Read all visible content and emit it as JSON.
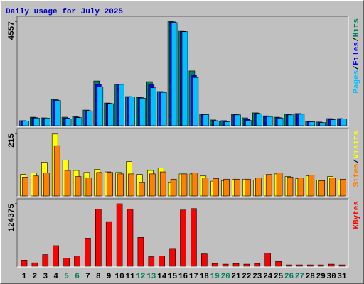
{
  "chart_data": {
    "type": "bar",
    "title": "Daily usage for July 2025",
    "categories": [
      "1",
      "2",
      "3",
      "4",
      "5",
      "6",
      "7",
      "8",
      "9",
      "10",
      "11",
      "12",
      "13",
      "14",
      "15",
      "16",
      "17",
      "18",
      "19",
      "20",
      "21",
      "22",
      "23",
      "24",
      "25",
      "26",
      "27",
      "28",
      "29",
      "30",
      "31"
    ],
    "category_colors": [
      "#000000",
      "#000000",
      "#000000",
      "#000000",
      "#00805c",
      "#00805c",
      "#000000",
      "#000000",
      "#000000",
      "#000000",
      "#000000",
      "#00805c",
      "#00805c",
      "#000000",
      "#000000",
      "#000000",
      "#000000",
      "#000000",
      "#00805c",
      "#00805c",
      "#000000",
      "#000000",
      "#000000",
      "#000000",
      "#000000",
      "#00805c",
      "#00805c",
      "#000000",
      "#000000",
      "#000000",
      "#000000"
    ],
    "legend_separator": "/",
    "panels": [
      {
        "ylim": [
          0,
          4557
        ],
        "yticks": [
          4557
        ],
        "series": [
          {
            "name": "Hits",
            "color": "#00805c",
            "values": [
              220,
              370,
              340,
              1150,
              370,
              400,
              680,
              1950,
              990,
              1800,
              1270,
              1240,
              1920,
              1490,
              4557,
              4150,
              2390,
              500,
              250,
              220,
              500,
              340,
              560,
              430,
              370,
              500,
              530,
              190,
              160,
              310,
              310
            ]
          },
          {
            "name": "Files",
            "color": "#0000ff",
            "values": [
              210,
              350,
              335,
              1120,
              330,
              370,
              660,
              1800,
              975,
              1800,
              1260,
              1220,
              1780,
              1470,
              4530,
              4120,
              2200,
              490,
              220,
              190,
              480,
              280,
              540,
              410,
              350,
              480,
              510,
              180,
              140,
              280,
              300
            ]
          },
          {
            "name": "Pages",
            "color": "#00c0ff",
            "values": [
              200,
              330,
              330,
              1100,
              300,
              350,
              640,
              1700,
              960,
              1800,
              1250,
              1200,
              1650,
              1450,
              4500,
              4100,
              2100,
              480,
              200,
              170,
              470,
              230,
              520,
              400,
              330,
              470,
              500,
              170,
              130,
              260,
              300
            ]
          }
        ]
      },
      {
        "ylim": [
          0,
          215
        ],
        "yticks": [
          215
        ],
        "series": [
          {
            "name": "Visits",
            "color": "#ffff00",
            "values": [
              74,
              79,
              116,
              213,
              123,
              88,
              81,
              92,
              83,
              81,
              118,
              74,
              88,
              97,
              46,
              76,
              76,
              69,
              51,
              53,
              58,
              58,
              55,
              72,
              76,
              67,
              60,
              69,
              55,
              67,
              55
            ]
          },
          {
            "name": "Sites",
            "color": "#ff8000",
            "values": [
              65,
              69,
              79,
              173,
              88,
              67,
              62,
              81,
              81,
              76,
              76,
              46,
              76,
              83,
              58,
              76,
              79,
              62,
              60,
              58,
              58,
              58,
              62,
              74,
              79,
              65,
              62,
              72,
              53,
              62,
              58
            ]
          }
        ]
      },
      {
        "ylim": [
          0,
          124375
        ],
        "yticks": [
          124375
        ],
        "series": [
          {
            "name": "KBytes",
            "color": "#ff0000",
            "values": [
              12300,
              6800,
              23200,
              41000,
              16400,
              20500,
              56000,
              113400,
              88800,
              124375,
              113400,
              57400,
              19100,
              20500,
              35500,
              112000,
              114800,
              24600,
              5500,
              4100,
              5500,
              4100,
              5500,
              26000,
              9600,
              2700,
              2700,
              2700,
              2700,
              4100,
              2700
            ]
          }
        ]
      }
    ]
  }
}
